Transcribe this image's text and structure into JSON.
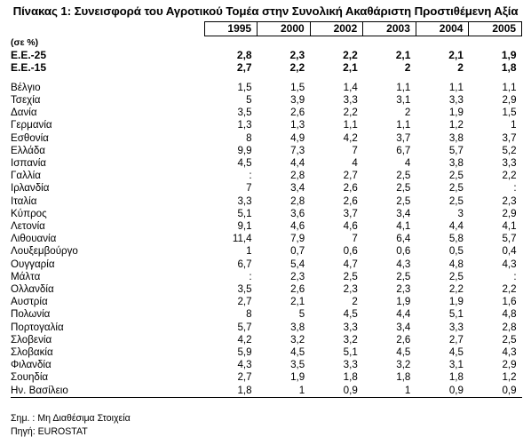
{
  "title": "Πίνακας 1: Συνεισφορά του Αγροτικού Τομέα στην Συνολική Ακαθάριστη Προστιθέμενη Αξία",
  "unit": "(σε %)",
  "years": [
    "1995",
    "2000",
    "2002",
    "2003",
    "2004",
    "2005"
  ],
  "aggregates": [
    {
      "name": "Ε.Ε.-25",
      "values": [
        "2,8",
        "2,3",
        "2,2",
        "2,1",
        "2,1",
        "1,9"
      ]
    },
    {
      "name": "Ε.Ε.-15",
      "values": [
        "2,7",
        "2,2",
        "2,1",
        "2",
        "2",
        "1,8"
      ]
    }
  ],
  "countries": [
    {
      "name": "Βέλγιο",
      "values": [
        "1,5",
        "1,5",
        "1,4",
        "1,1",
        "1,1",
        "1,1"
      ]
    },
    {
      "name": "Τσεχία",
      "values": [
        "5",
        "3,9",
        "3,3",
        "3,1",
        "3,3",
        "2,9"
      ]
    },
    {
      "name": "Δανία",
      "values": [
        "3,5",
        "2,6",
        "2,2",
        "2",
        "1,9",
        "1,5"
      ]
    },
    {
      "name": "Γερμανία",
      "values": [
        "1,3",
        "1,3",
        "1,1",
        "1,1",
        "1,2",
        "1"
      ]
    },
    {
      "name": "Εσθονία",
      "values": [
        "8",
        "4,9",
        "4,2",
        "3,7",
        "3,8",
        "3,7"
      ]
    },
    {
      "name": "Ελλάδα",
      "values": [
        "9,9",
        "7,3",
        "7",
        "6,7",
        "5,7",
        "5,2"
      ]
    },
    {
      "name": "Ισπανία",
      "values": [
        "4,5",
        "4,4",
        "4",
        "4",
        "3,8",
        "3,3"
      ]
    },
    {
      "name": "Γαλλία",
      "values": [
        ":",
        "2,8",
        "2,7",
        "2,5",
        "2,5",
        "2,2"
      ]
    },
    {
      "name": "Ιρλανδία",
      "values": [
        "7",
        "3,4",
        "2,6",
        "2,5",
        "2,5",
        ":"
      ]
    },
    {
      "name": "Ιταλία",
      "values": [
        "3,3",
        "2,8",
        "2,6",
        "2,5",
        "2,5",
        "2,3"
      ]
    },
    {
      "name": "Κύπρος",
      "values": [
        "5,1",
        "3,6",
        "3,7",
        "3,4",
        "3",
        "2,9"
      ]
    },
    {
      "name": "Λετονία",
      "values": [
        "9,1",
        "4,6",
        "4,6",
        "4,1",
        "4,4",
        "4,1"
      ]
    },
    {
      "name": "Λιθουανία",
      "values": [
        "11,4",
        "7,9",
        "7",
        "6,4",
        "5,8",
        "5,7"
      ]
    },
    {
      "name": "Λουξεμβούργο",
      "values": [
        "1",
        "0,7",
        "0,6",
        "0,6",
        "0,5",
        "0,4"
      ]
    },
    {
      "name": "Ουγγαρία",
      "values": [
        "6,7",
        "5,4",
        "4,7",
        "4,3",
        "4,8",
        "4,3"
      ]
    },
    {
      "name": "Μάλτα",
      "values": [
        ":",
        "2,3",
        "2,5",
        "2,5",
        "2,5",
        ":"
      ]
    },
    {
      "name": "Ολλανδία",
      "values": [
        "3,5",
        "2,6",
        "2,3",
        "2,3",
        "2,2",
        "2,2"
      ]
    },
    {
      "name": "Αυστρία",
      "values": [
        "2,7",
        "2,1",
        "2",
        "1,9",
        "1,9",
        "1,6"
      ]
    },
    {
      "name": "Πολωνία",
      "values": [
        "8",
        "5",
        "4,5",
        "4,4",
        "5,1",
        "4,8"
      ]
    },
    {
      "name": "Πορτογαλία",
      "values": [
        "5,7",
        "3,8",
        "3,3",
        "3,4",
        "3,3",
        "2,8"
      ]
    },
    {
      "name": "Σλοβενία",
      "values": [
        "4,2",
        "3,2",
        "3,2",
        "2,6",
        "2,7",
        "2,5"
      ]
    },
    {
      "name": "Σλοβακία",
      "values": [
        "5,9",
        "4,5",
        "5,1",
        "4,5",
        "4,5",
        "4,3"
      ]
    },
    {
      "name": "Φιλανδία",
      "values": [
        "4,3",
        "3,5",
        "3,3",
        "3,2",
        "3,1",
        "2,9"
      ]
    },
    {
      "name": "Σουηδία",
      "values": [
        "2,7",
        "1,9",
        "1,8",
        "1,8",
        "1,8",
        "1,2"
      ]
    },
    {
      "name": "Ην. Βασίλειο",
      "values": [
        "1,8",
        "1",
        "0,9",
        "1",
        "0,9",
        "0,9"
      ]
    }
  ],
  "notes": {
    "note": "Σημ. : Μη Διαθέσιμα Στοιχεία",
    "source": "Πηγή: EUROSTAT"
  }
}
